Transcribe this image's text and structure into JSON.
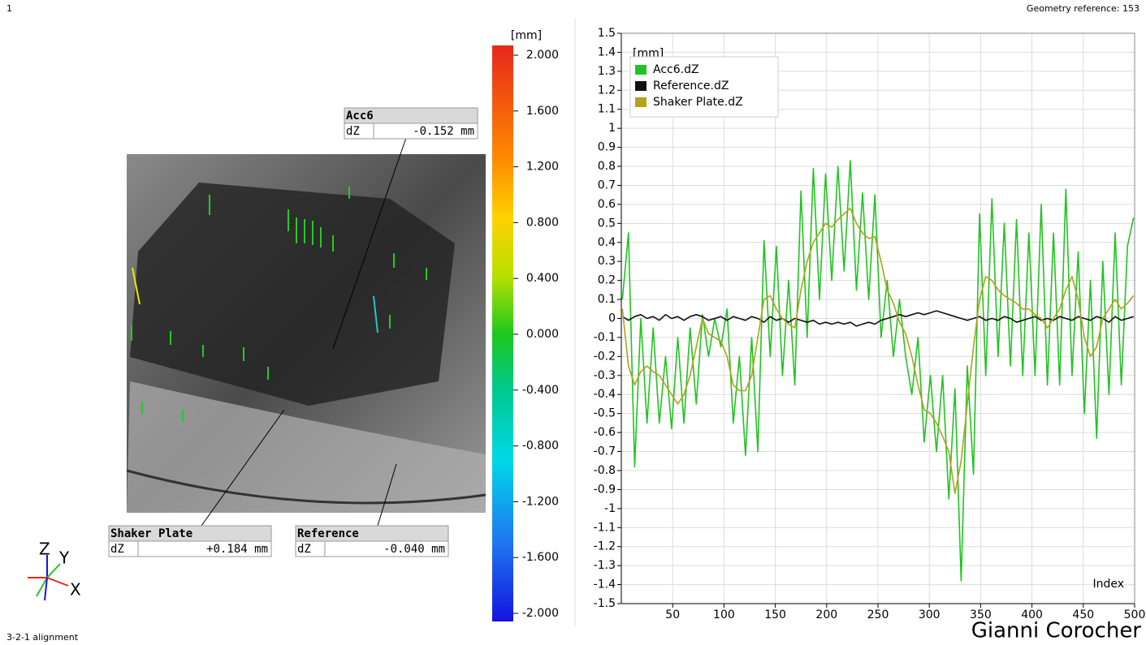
{
  "header": {
    "frame": "1",
    "geometry_reference": "Geometry reference: 153"
  },
  "footer": {
    "alignment": "3-2-1 alignment",
    "author": "Gianni Corocher"
  },
  "triad": {
    "z": "Z",
    "y": "Y",
    "x": "X"
  },
  "colorbar": {
    "unit": "[mm]",
    "range": [
      -2,
      2
    ],
    "ticks": [
      {
        "value": 2,
        "label": "2.000"
      },
      {
        "value": 1.6,
        "label": "1.600"
      },
      {
        "value": 1.2,
        "label": "1.200"
      },
      {
        "value": 0.8,
        "label": "0.800"
      },
      {
        "value": 0.4,
        "label": "0.400"
      },
      {
        "value": 0,
        "label": "0.000"
      },
      {
        "value": -0.4,
        "label": "-0.400"
      },
      {
        "value": -0.8,
        "label": "-0.800"
      },
      {
        "value": -1.2,
        "label": "-1.200"
      },
      {
        "value": -1.6,
        "label": "-1.600"
      },
      {
        "value": -2,
        "label": "-2.000"
      }
    ]
  },
  "callouts": [
    {
      "title": "Acc6",
      "field": "dZ",
      "value": "-0.152 mm"
    },
    {
      "title": "Shaker Plate",
      "field": "dZ",
      "value": "+0.184 mm"
    },
    {
      "title": "Reference",
      "field": "dZ",
      "value": "-0.040 mm"
    }
  ],
  "chart_data": {
    "type": "line",
    "y_label": "[mm]",
    "x_label": "Index",
    "grid": true,
    "legend": "top-left",
    "xlim": [
      0,
      500
    ],
    "xticks": [
      50,
      100,
      150,
      200,
      250,
      300,
      350,
      400,
      450,
      500
    ],
    "ylim": [
      -1.5,
      1.5
    ],
    "yticks": [
      -1.5,
      -1.4,
      -1.3,
      -1.2,
      -1.1,
      -1,
      -0.9,
      -0.8,
      -0.7,
      -0.6,
      -0.5,
      -0.4,
      -0.3,
      -0.2,
      -0.1,
      0,
      0.1,
      0.2,
      0.3,
      0.4,
      0.5,
      0.6,
      0.7,
      0.8,
      0.9,
      1,
      1.1,
      1.2,
      1.3,
      1.4,
      1.5
    ],
    "x": [
      1,
      7,
      13,
      19,
      25,
      31,
      37,
      43,
      49,
      55,
      61,
      67,
      73,
      79,
      85,
      91,
      97,
      103,
      109,
      115,
      121,
      127,
      133,
      139,
      145,
      151,
      157,
      163,
      169,
      175,
      181,
      187,
      193,
      199,
      205,
      211,
      217,
      223,
      229,
      235,
      241,
      247,
      253,
      259,
      265,
      271,
      277,
      283,
      289,
      295,
      301,
      307,
      313,
      319,
      325,
      331,
      337,
      343,
      349,
      355,
      361,
      367,
      373,
      379,
      385,
      391,
      397,
      403,
      409,
      415,
      421,
      427,
      433,
      439,
      445,
      451,
      457,
      463,
      469,
      475,
      481,
      487,
      493,
      499
    ],
    "series": [
      {
        "name": "Acc6.dZ",
        "color": "#22c322",
        "values": [
          0.1,
          0.45,
          -0.78,
          0,
          -0.55,
          -0.05,
          -0.55,
          -0.2,
          -0.58,
          -0.1,
          -0.55,
          -0.05,
          -0.45,
          0.02,
          -0.2,
          0,
          -0.15,
          0.05,
          -0.55,
          -0.2,
          -0.72,
          -0.1,
          -0.7,
          0.41,
          -0.2,
          0.38,
          -0.3,
          0.2,
          -0.35,
          0.67,
          -0.1,
          0.79,
          0.1,
          0.76,
          0.2,
          0.8,
          0.25,
          0.83,
          0.15,
          0.66,
          0.1,
          0.65,
          -0.1,
          0.2,
          -0.2,
          0.1,
          -0.2,
          -0.4,
          -0.1,
          -0.65,
          -0.3,
          -0.7,
          -0.3,
          -0.95,
          -0.37,
          -1.38,
          -0.25,
          -0.82,
          0.55,
          -0.3,
          0.63,
          -0.2,
          0.5,
          -0.25,
          0.52,
          -0.3,
          0.45,
          -0.3,
          0.6,
          -0.35,
          0.45,
          -0.35,
          0.68,
          -0.3,
          0.35,
          -0.5,
          0.2,
          -0.63,
          0.3,
          -0.4,
          0.45,
          -0.35,
          0.38,
          0.53
        ]
      },
      {
        "name": "Reference.dZ",
        "color": "#111111",
        "values": [
          0.01,
          -0.01,
          0.01,
          0.02,
          0,
          0.01,
          -0.01,
          0.02,
          0,
          0.01,
          -0.01,
          0.01,
          0.02,
          0.01,
          -0.01,
          0,
          0.01,
          -0.01,
          0.01,
          0,
          -0.01,
          0.01,
          0,
          -0.02,
          0.01,
          -0.01,
          0,
          -0.02,
          0,
          -0.01,
          -0.02,
          -0.01,
          -0.03,
          -0.02,
          -0.03,
          -0.02,
          -0.03,
          -0.02,
          -0.04,
          -0.03,
          -0.02,
          -0.03,
          -0.01,
          0,
          0.01,
          0.02,
          0.01,
          0.02,
          0.03,
          0.02,
          0.03,
          0.04,
          0.03,
          0.02,
          0.01,
          0,
          -0.01,
          0,
          0.01,
          -0.01,
          0,
          -0.01,
          0.01,
          0,
          -0.02,
          -0.01,
          0,
          0.01,
          -0.01,
          0,
          -0.01,
          0.01,
          0,
          -0.01,
          0.01,
          0,
          -0.01,
          0.01,
          0,
          -0.02,
          0.01,
          -0.01,
          0,
          0.01
        ]
      },
      {
        "name": "Shaker Plate.dZ",
        "color": "#b3a01c",
        "values": [
          0.05,
          -0.25,
          -0.35,
          -0.28,
          -0.25,
          -0.28,
          -0.3,
          -0.35,
          -0.4,
          -0.45,
          -0.4,
          -0.3,
          -0.15,
          0,
          -0.08,
          -0.1,
          -0.12,
          -0.2,
          -0.35,
          -0.38,
          -0.38,
          -0.3,
          -0.1,
          0.1,
          0.12,
          0.05,
          0,
          -0.03,
          -0.05,
          0.15,
          0.3,
          0.4,
          0.45,
          0.5,
          0.48,
          0.52,
          0.55,
          0.58,
          0.5,
          0.45,
          0.42,
          0.43,
          0.3,
          0.15,
          0.08,
          -0.02,
          -0.08,
          -0.2,
          -0.35,
          -0.48,
          -0.5,
          -0.55,
          -0.62,
          -0.7,
          -0.92,
          -0.75,
          -0.45,
          -0.15,
          0.1,
          0.22,
          0.2,
          0.15,
          0.12,
          0.1,
          0.08,
          0.05,
          0.05,
          0.02,
          0,
          -0.05,
          0,
          0.05,
          0.15,
          0.22,
          0.1,
          -0.1,
          -0.2,
          -0.15,
          0,
          0.05,
          0.1,
          0.05,
          0.08,
          0.12
        ]
      }
    ]
  }
}
